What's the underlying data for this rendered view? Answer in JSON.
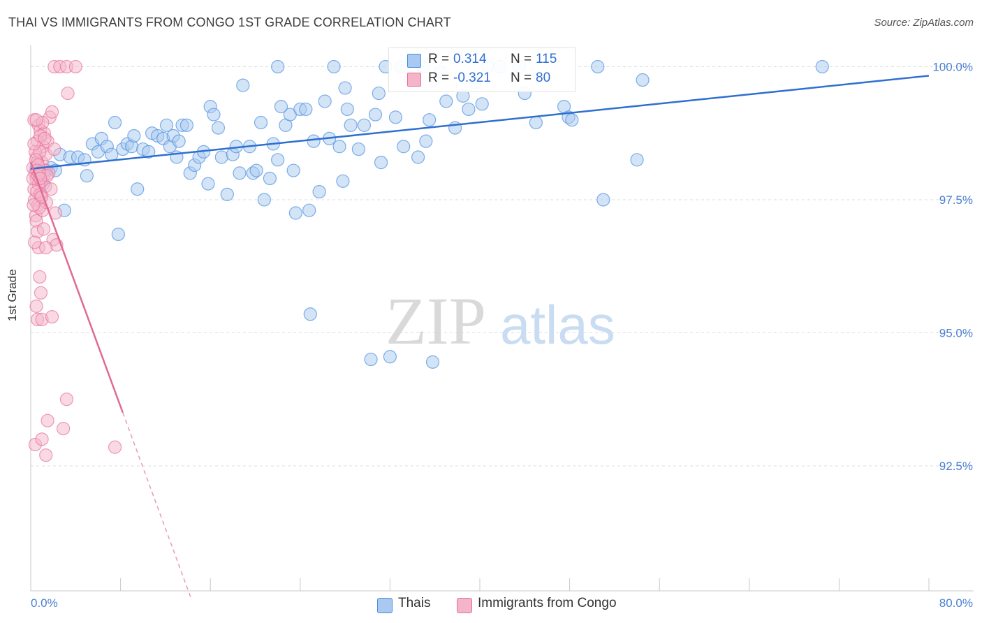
{
  "title": "THAI VS IMMIGRANTS FROM CONGO 1ST GRADE CORRELATION CHART",
  "source": "Source: ZipAtlas.com",
  "watermark": {
    "zip": "ZIP",
    "atlas": "atlas"
  },
  "chart_data": {
    "type": "scatter",
    "title": "THAI VS IMMIGRANTS FROM CONGO 1ST GRADE CORRELATION CHART",
    "ylabel": "1st Grade",
    "xlabel": "",
    "xlim": [
      0,
      80
    ],
    "ylim": [
      90.15,
      100.4
    ],
    "x_tick_labels": {
      "left": "0.0%",
      "right": "80.0%"
    },
    "y_ticks": [
      {
        "value": 100.0,
        "label": "100.0%"
      },
      {
        "value": 97.5,
        "label": "97.5%"
      },
      {
        "value": 95.0,
        "label": "95.0%"
      },
      {
        "value": 92.5,
        "label": "92.5%"
      }
    ],
    "grid": true,
    "stats": [
      {
        "series": "Thais",
        "r_label": "R =",
        "r_value": "0.314",
        "n_label": "N =",
        "n_value": "115"
      },
      {
        "series": "Immigrants from Congo",
        "r_label": "R =",
        "r_value": "-0.321",
        "n_label": "N =",
        "n_value": "80"
      }
    ],
    "series": [
      {
        "name": "Thais",
        "color": "#4a8ee0",
        "fill": "#a9c9f0",
        "trend": {
          "x0": 0,
          "y0": 98.08,
          "x1": 80,
          "y1": 99.83
        },
        "points": [
          [
            0.5,
            98.1
          ],
          [
            0.8,
            97.95
          ],
          [
            1.1,
            97.8
          ],
          [
            1.4,
            98.05
          ],
          [
            1.8,
            98.1
          ],
          [
            2.2,
            98.05
          ],
          [
            2.6,
            98.35
          ],
          [
            3.0,
            97.3
          ],
          [
            3.5,
            98.3
          ],
          [
            4.2,
            98.3
          ],
          [
            4.8,
            98.25
          ],
          [
            5.0,
            97.95
          ],
          [
            5.5,
            98.55
          ],
          [
            6.0,
            98.4
          ],
          [
            6.3,
            98.65
          ],
          [
            6.8,
            98.5
          ],
          [
            7.2,
            98.35
          ],
          [
            7.5,
            98.95
          ],
          [
            7.8,
            96.85
          ],
          [
            8.2,
            98.45
          ],
          [
            8.6,
            98.55
          ],
          [
            9.0,
            98.5
          ],
          [
            9.2,
            98.7
          ],
          [
            9.5,
            97.7
          ],
          [
            10.0,
            98.45
          ],
          [
            10.5,
            98.4
          ],
          [
            10.8,
            98.75
          ],
          [
            11.3,
            98.7
          ],
          [
            11.8,
            98.65
          ],
          [
            12.1,
            98.9
          ],
          [
            12.4,
            98.5
          ],
          [
            12.7,
            98.7
          ],
          [
            13.0,
            98.3
          ],
          [
            13.5,
            98.9
          ],
          [
            13.9,
            98.9
          ],
          [
            14.2,
            98.0
          ],
          [
            14.6,
            98.15
          ],
          [
            15.0,
            98.3
          ],
          [
            15.4,
            98.4
          ],
          [
            15.8,
            97.8
          ],
          [
            16.0,
            99.25
          ],
          [
            16.3,
            99.1
          ],
          [
            16.7,
            98.85
          ],
          [
            17.0,
            98.3
          ],
          [
            17.5,
            97.6
          ],
          [
            18.0,
            98.35
          ],
          [
            18.3,
            98.5
          ],
          [
            18.6,
            98.0
          ],
          [
            18.9,
            99.65
          ],
          [
            19.5,
            98.5
          ],
          [
            19.8,
            98.0
          ],
          [
            20.1,
            98.05
          ],
          [
            20.5,
            98.95
          ],
          [
            20.8,
            97.5
          ],
          [
            21.3,
            97.9
          ],
          [
            21.6,
            98.55
          ],
          [
            22.0,
            98.25
          ],
          [
            22.3,
            99.25
          ],
          [
            22.7,
            98.9
          ],
          [
            23.1,
            99.1
          ],
          [
            23.4,
            98.05
          ],
          [
            23.6,
            97.25
          ],
          [
            24.0,
            99.2
          ],
          [
            24.5,
            99.2
          ],
          [
            24.8,
            97.3
          ],
          [
            24.9,
            95.35
          ],
          [
            25.2,
            98.6
          ],
          [
            25.7,
            97.65
          ],
          [
            26.2,
            99.35
          ],
          [
            26.6,
            98.65
          ],
          [
            27.0,
            100.0
          ],
          [
            27.5,
            98.5
          ],
          [
            27.8,
            97.85
          ],
          [
            28.2,
            99.2
          ],
          [
            28.5,
            98.9
          ],
          [
            29.2,
            98.45
          ],
          [
            29.7,
            98.9
          ],
          [
            30.3,
            94.5
          ],
          [
            30.7,
            99.1
          ],
          [
            31.2,
            98.2
          ],
          [
            31.6,
            100.0
          ],
          [
            32.0,
            94.55
          ],
          [
            32.5,
            99.05
          ],
          [
            33.2,
            98.5
          ],
          [
            33.8,
            99.8
          ],
          [
            34.5,
            98.3
          ],
          [
            35.0,
            100.0
          ],
          [
            35.2,
            98.6
          ],
          [
            35.8,
            94.45
          ],
          [
            36.5,
            99.9
          ],
          [
            37.0,
            99.35
          ],
          [
            37.8,
            98.85
          ],
          [
            38.5,
            99.45
          ],
          [
            39.0,
            99.2
          ],
          [
            39.6,
            99.7
          ],
          [
            40.2,
            99.3
          ],
          [
            40.7,
            100.0
          ],
          [
            41.8,
            100.0
          ],
          [
            43.5,
            100.0
          ],
          [
            45.0,
            98.95
          ],
          [
            47.5,
            99.25
          ],
          [
            47.9,
            99.05
          ],
          [
            48.2,
            99.0
          ],
          [
            50.5,
            100.0
          ],
          [
            51.0,
            97.5
          ],
          [
            54.0,
            98.25
          ],
          [
            54.5,
            99.75
          ],
          [
            70.5,
            100.0
          ],
          [
            28.0,
            99.6
          ],
          [
            33.0,
            100.0
          ],
          [
            22.0,
            100.0
          ],
          [
            13.2,
            98.6
          ],
          [
            35.5,
            99.0
          ],
          [
            31.0,
            99.5
          ],
          [
            44.0,
            99.5
          ]
        ]
      },
      {
        "name": "Immigrants from Congo",
        "color": "#e8709a",
        "fill": "#f4b5c9",
        "trend": {
          "x0": 0,
          "y0": 98.2,
          "x1": 8.2,
          "y1": 93.5,
          "dash_x1": 14.3,
          "dash_y1": 90.0
        },
        "points": [
          [
            0.2,
            98.1
          ],
          [
            0.3,
            97.7
          ],
          [
            0.35,
            97.5
          ],
          [
            0.4,
            98.0
          ],
          [
            0.45,
            97.2
          ],
          [
            0.5,
            97.9
          ],
          [
            0.55,
            98.3
          ],
          [
            0.6,
            98.6
          ],
          [
            0.65,
            97.4
          ],
          [
            0.7,
            98.9
          ],
          [
            0.75,
            98.1
          ],
          [
            0.8,
            97.6
          ],
          [
            0.85,
            98.8
          ],
          [
            0.9,
            98.0
          ],
          [
            0.95,
            97.85
          ],
          [
            1.0,
            98.2
          ],
          [
            1.05,
            97.3
          ],
          [
            1.1,
            98.5
          ],
          [
            1.15,
            97.95
          ],
          [
            1.2,
            98.75
          ],
          [
            1.25,
            98.05
          ],
          [
            1.3,
            97.75
          ],
          [
            1.35,
            98.35
          ],
          [
            1.4,
            97.45
          ],
          [
            1.5,
            98.6
          ],
          [
            1.6,
            98.0
          ],
          [
            1.7,
            99.05
          ],
          [
            1.8,
            97.7
          ],
          [
            1.9,
            99.15
          ],
          [
            2.0,
            96.75
          ],
          [
            2.1,
            98.45
          ],
          [
            2.2,
            97.25
          ],
          [
            2.3,
            96.65
          ],
          [
            0.3,
            99.0
          ],
          [
            0.4,
            98.4
          ],
          [
            0.5,
            97.1
          ],
          [
            0.6,
            96.9
          ],
          [
            0.7,
            96.6
          ],
          [
            0.8,
            96.05
          ],
          [
            0.9,
            95.75
          ],
          [
            0.5,
            95.5
          ],
          [
            0.6,
            95.25
          ],
          [
            1.0,
            95.25
          ],
          [
            1.9,
            95.3
          ],
          [
            0.4,
            92.9
          ],
          [
            1.0,
            93.0
          ],
          [
            1.5,
            93.35
          ],
          [
            1.35,
            92.7
          ],
          [
            2.9,
            93.2
          ],
          [
            3.2,
            93.75
          ],
          [
            7.5,
            92.85
          ],
          [
            2.1,
            100.0
          ],
          [
            2.6,
            100.0
          ],
          [
            3.2,
            100.0
          ],
          [
            3.3,
            99.5
          ],
          [
            4.0,
            100.0
          ],
          [
            0.6,
            98.2
          ],
          [
            0.7,
            97.8
          ],
          [
            0.8,
            98.4
          ],
          [
            0.9,
            97.6
          ],
          [
            0.2,
            97.9
          ],
          [
            0.3,
            98.55
          ],
          [
            0.45,
            98.25
          ],
          [
            0.55,
            97.65
          ],
          [
            0.65,
            98.15
          ],
          [
            0.75,
            97.35
          ],
          [
            0.85,
            98.7
          ],
          [
            0.95,
            97.55
          ],
          [
            1.05,
            98.95
          ],
          [
            1.15,
            96.95
          ],
          [
            1.25,
            98.65
          ],
          [
            1.35,
            96.6
          ],
          [
            0.5,
            99.0
          ],
          [
            0.35,
            96.7
          ],
          [
            1.45,
            97.95
          ],
          [
            0.25,
            97.4
          ],
          [
            0.55,
            98.05
          ],
          [
            0.65,
            97.95
          ],
          [
            0.75,
            98.0
          ],
          [
            0.85,
            97.9
          ]
        ]
      }
    ]
  },
  "legend": {
    "items": [
      "Thais",
      "Immigrants from Congo"
    ]
  }
}
